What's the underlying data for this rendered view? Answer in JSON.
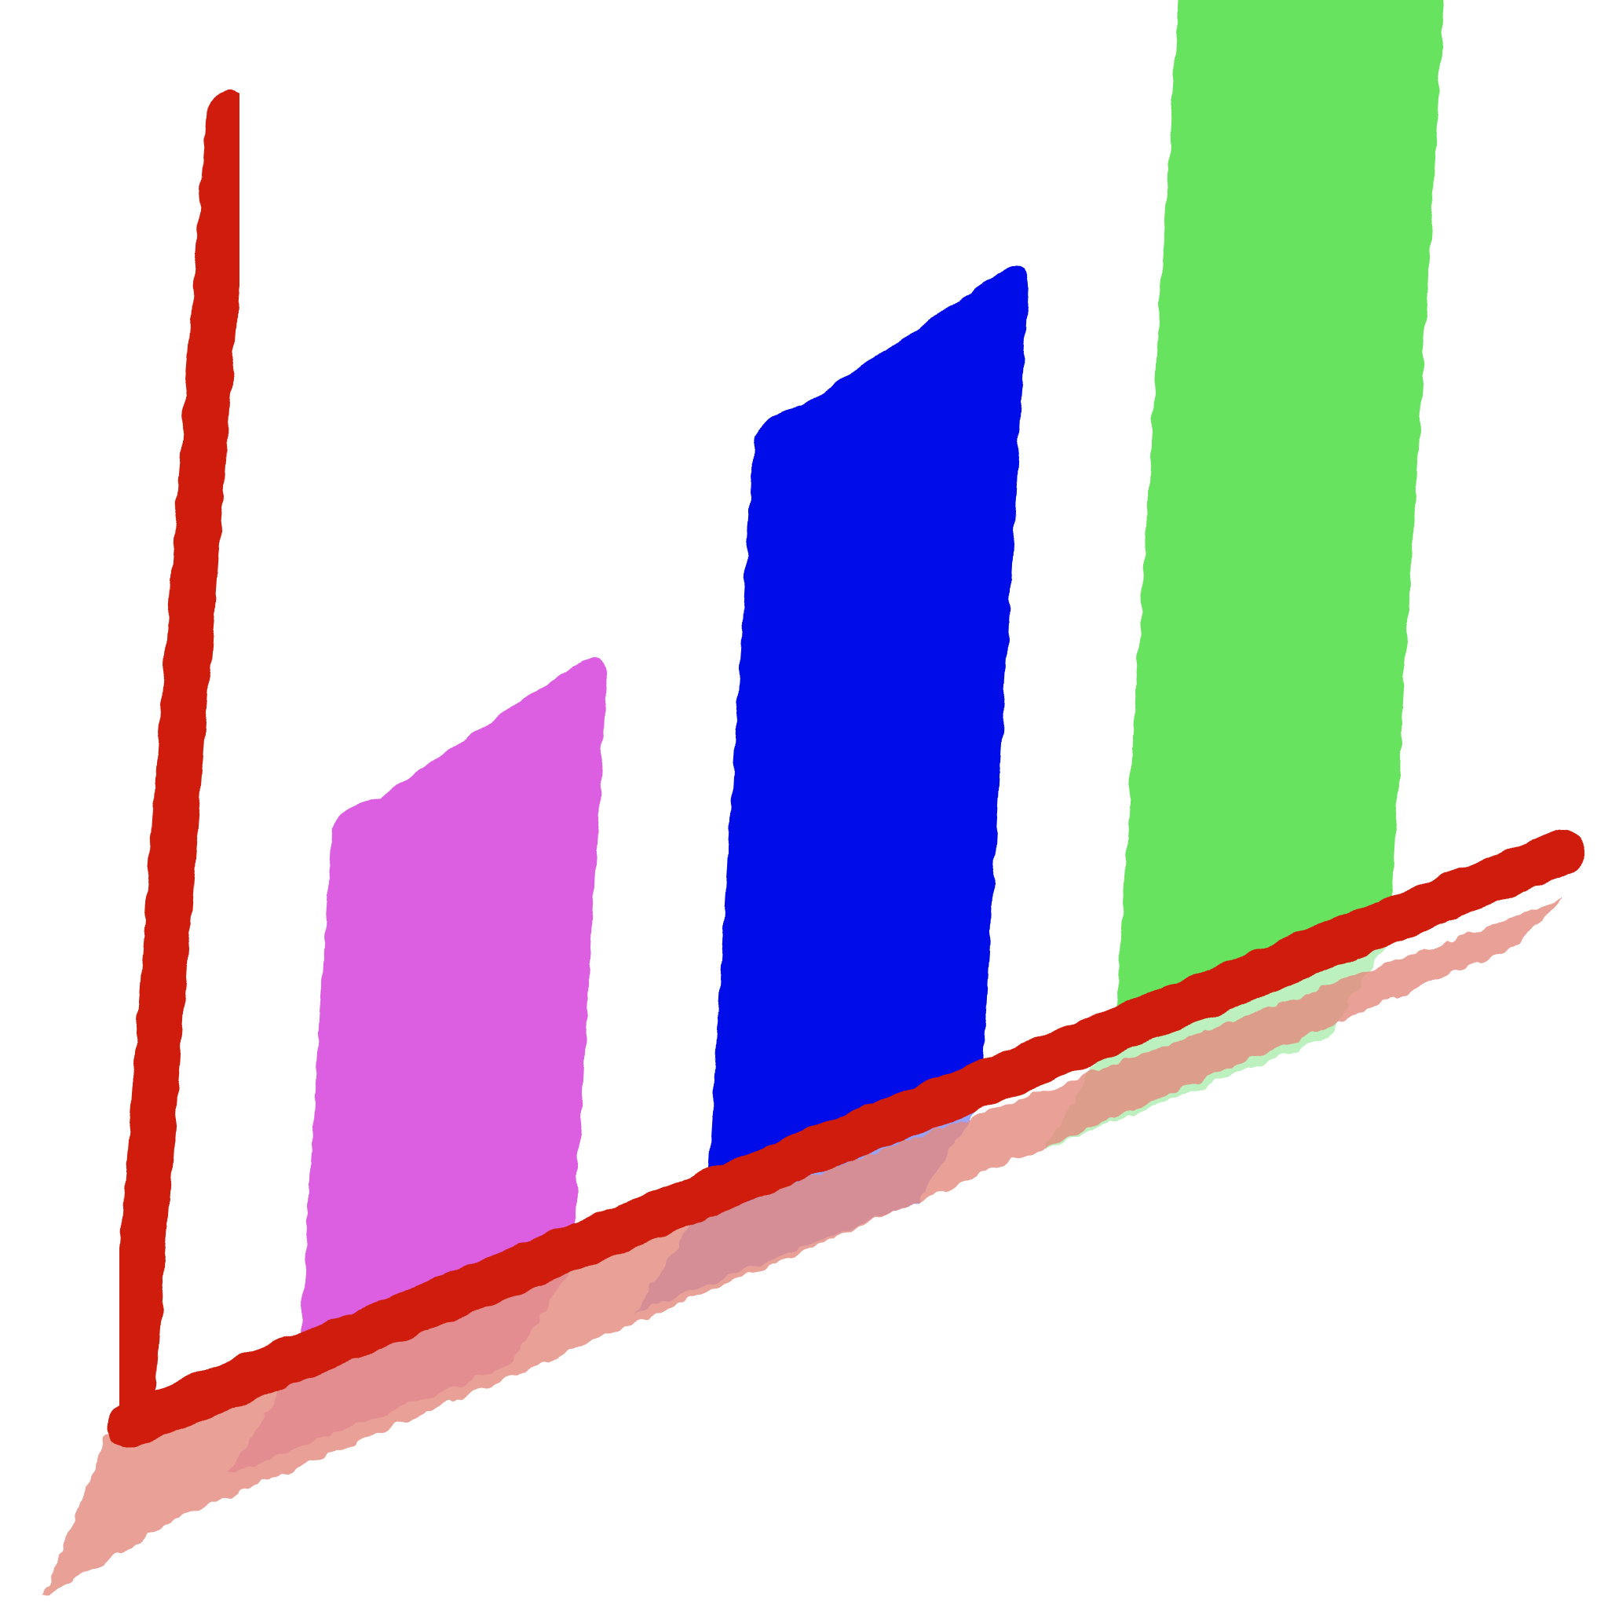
{
  "chart_data": {
    "type": "bar",
    "title": "",
    "xlabel": "",
    "ylabel": "",
    "categories": [
      "",
      "",
      ""
    ],
    "values": [
      37,
      52,
      72
    ],
    "ylim": [
      0,
      100
    ],
    "grid": false,
    "legend": "none",
    "style": "hand-drawn painted strokes, skewed perspective",
    "colors": {
      "axis": "#cf1d0d",
      "axis_shadow": "#e48a7e",
      "bars": [
        "#db5fe0",
        "#000fe8",
        "#68e35e"
      ],
      "bar_shadows": [
        "#e07ad8",
        "#7a84f0",
        "#a8ecaa"
      ]
    }
  }
}
